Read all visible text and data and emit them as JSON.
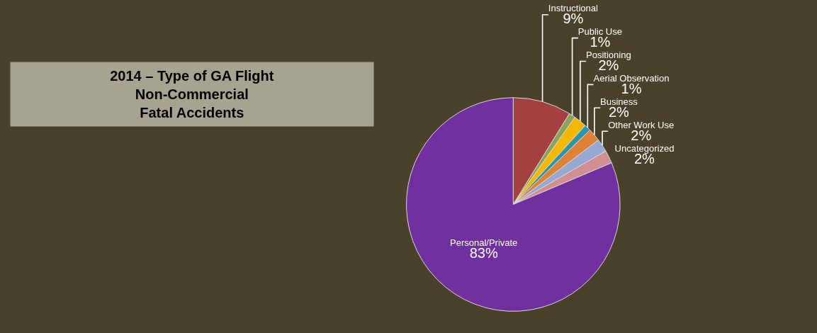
{
  "chart_data": {
    "type": "pie",
    "title": "2014 – Type of GA Flight\nNon-Commercial\nFatal Accidents",
    "categories": [
      "Instructional",
      "Public Use",
      "Positioning",
      "Aerial Observation",
      "Business",
      "Other Work Use",
      "Uncategorized",
      "Personal/Private"
    ],
    "values": [
      9,
      1,
      2,
      1,
      2,
      2,
      2,
      83
    ],
    "value_labels": [
      "9%",
      "1%",
      "2%",
      "1%",
      "2%",
      "2%",
      "2%",
      "83%"
    ],
    "colors": [
      "#a4403f",
      "#8aa35a",
      "#f5b800",
      "#2e93ac",
      "#dd8236",
      "#95a9d3",
      "#d09092",
      "#7030a0"
    ],
    "legend": false
  }
}
